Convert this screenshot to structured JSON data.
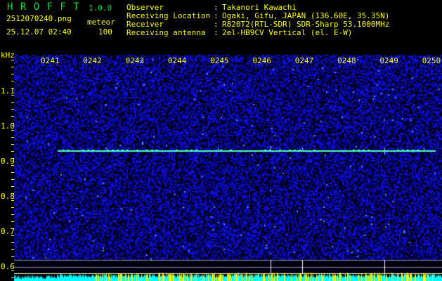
{
  "app": {
    "name": "H R O F F T",
    "version": "1.0.0"
  },
  "file": {
    "name": "2512070240.png",
    "datetime": "25.12.07 02:40",
    "type_label": "meteor",
    "count": "100"
  },
  "info": [
    {
      "label": "Observer",
      "value": "Takanori Kawachi"
    },
    {
      "label": "Receiving Location",
      "value": "Ogaki, Gifu, JAPAN (136.60E, 35.35N)"
    },
    {
      "label": "Receiver",
      "value": "R820T2(RTL-SDR) SDR-Sharp 53.1000MHz"
    },
    {
      "label": "Receiving antenna",
      "value": "2el-HB9CV Vertical (el. E-W)"
    }
  ],
  "y_axis": {
    "unit": "kHz",
    "ticks": [
      "1.1",
      "1.0",
      "0.9",
      "0.8",
      "0.7",
      "0.6"
    ]
  },
  "x_axis": {
    "ticks": [
      "0241",
      "0242",
      "0243",
      "0244",
      "0245",
      "0246",
      "0247",
      "0248",
      "0249",
      "0250"
    ]
  },
  "colors": {
    "text": "#ffff00",
    "title": "#00e040",
    "background_noise": "#0000c0",
    "signal": "#40ffc0",
    "bars_low": "#00ffff",
    "bars_high": "#ffff00"
  }
}
